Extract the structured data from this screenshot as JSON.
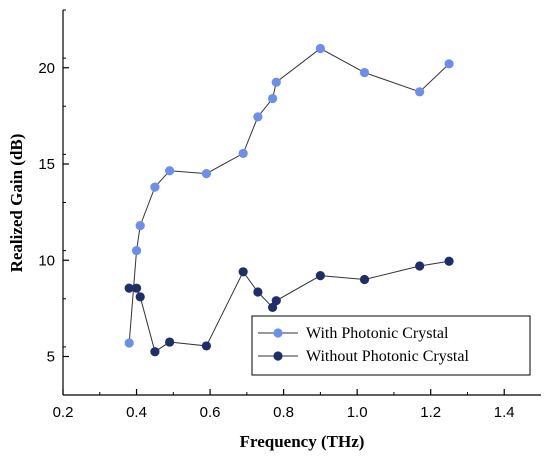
{
  "chart_data": {
    "type": "line",
    "xlabel": "Frequency (THz)",
    "ylabel": "Realized Gain (dB)",
    "xlim": [
      0.2,
      1.5
    ],
    "ylim": [
      3,
      23
    ],
    "x_ticks": [
      0.2,
      0.4,
      0.6,
      0.8,
      1.0,
      1.2,
      1.4
    ],
    "x_tick_labels": [
      "0.2",
      "0.4",
      "0.6",
      "0.8",
      "1.0",
      "1.2",
      "1.4"
    ],
    "y_ticks": [
      5,
      10,
      15,
      20
    ],
    "y_tick_labels": [
      "5",
      "10",
      "15",
      "20"
    ],
    "grid": false,
    "legend_position": "bottom-right",
    "series": [
      {
        "name": "With Photonic Crystal",
        "color": "#6a8ff0",
        "x": [
          0.38,
          0.4,
          0.41,
          0.45,
          0.49,
          0.59,
          0.69,
          0.73,
          0.77,
          0.78,
          0.9,
          1.02,
          1.17,
          1.25
        ],
        "y": [
          5.7,
          10.5,
          11.8,
          13.8,
          14.65,
          14.5,
          15.55,
          17.45,
          18.4,
          19.25,
          21.0,
          19.75,
          18.75,
          20.2
        ]
      },
      {
        "name": "Without Photonic Crystal",
        "color": "#1c2f6b",
        "x": [
          0.38,
          0.4,
          0.41,
          0.45,
          0.49,
          0.59,
          0.69,
          0.73,
          0.77,
          0.78,
          0.9,
          1.02,
          1.17,
          1.25
        ],
        "y": [
          8.55,
          8.55,
          8.1,
          5.25,
          5.75,
          5.55,
          9.4,
          8.35,
          7.55,
          7.9,
          9.2,
          9.0,
          9.7,
          9.95
        ]
      }
    ]
  }
}
